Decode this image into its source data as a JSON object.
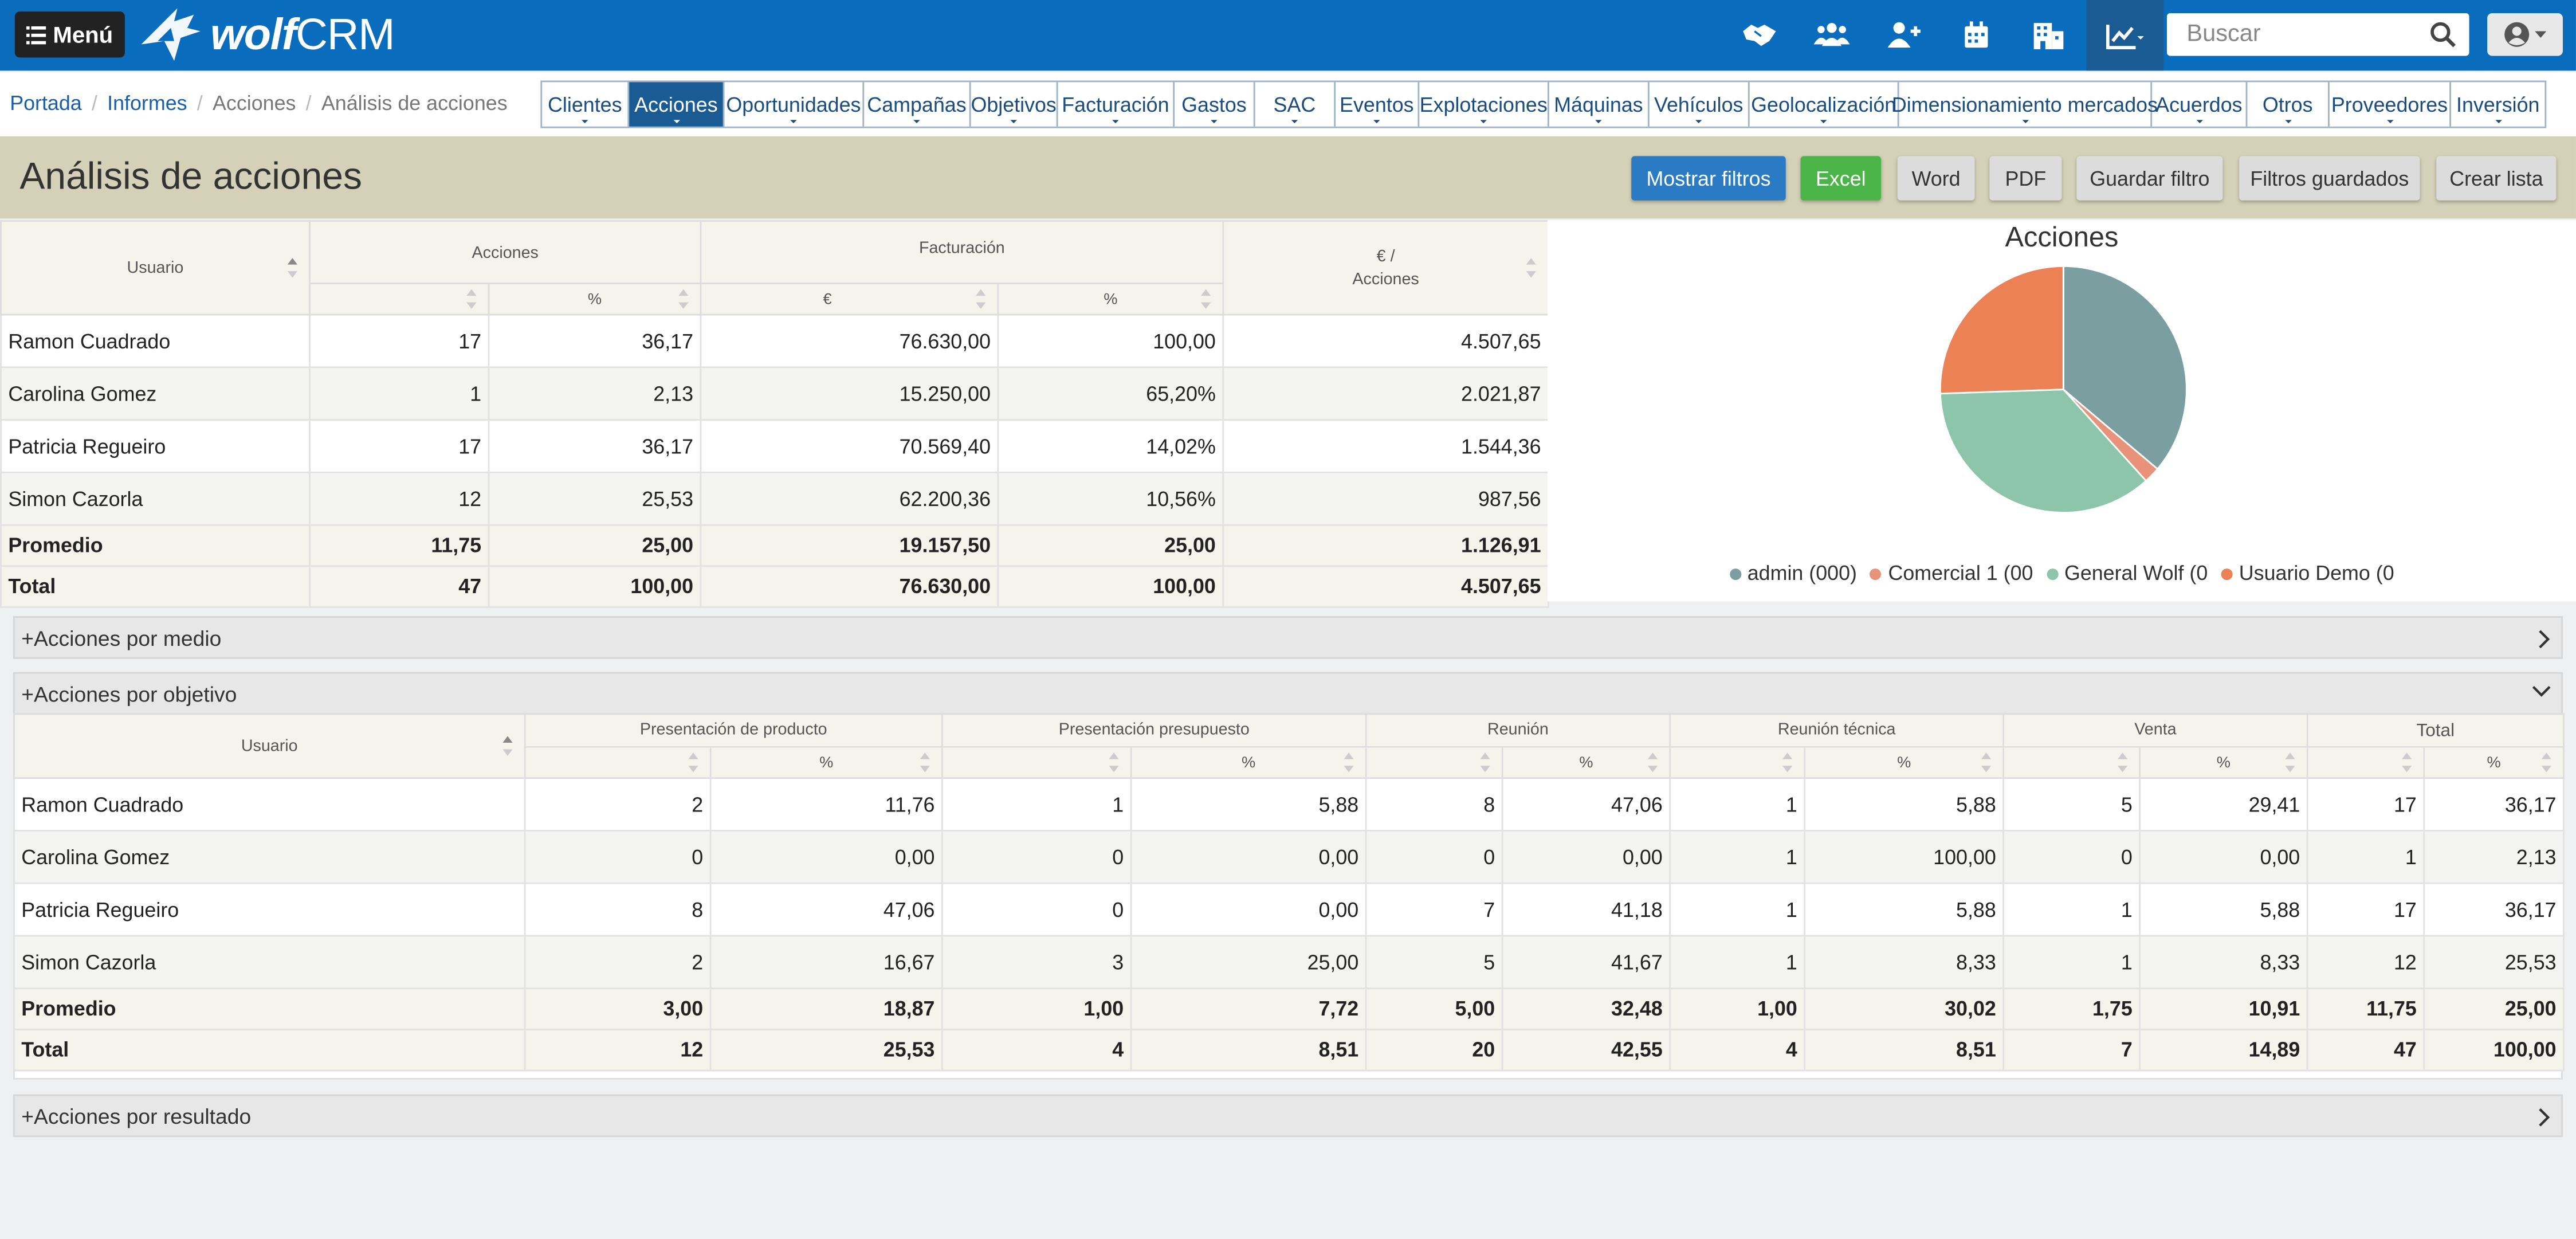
{
  "topbar": {
    "menu_label": "Menú",
    "logo_text_a": "wolf",
    "logo_text_b": "CRM",
    "search_placeholder": "Buscar",
    "icons": [
      "handshake-icon",
      "users-icon",
      "add-user-icon",
      "calendar-icon",
      "building-icon",
      "chart-line-icon"
    ]
  },
  "breadcrumb": [
    {
      "label": "Portada",
      "link": true
    },
    {
      "label": "Informes",
      "link": true
    },
    {
      "label": "Acciones",
      "link": false
    },
    {
      "label": "Análisis de acciones",
      "link": false
    }
  ],
  "tabs": [
    {
      "label": "Clientes",
      "w": 53
    },
    {
      "label": "Acciones",
      "w": 58,
      "active": true
    },
    {
      "label": "Oportunidades",
      "w": 85
    },
    {
      "label": "Campañas",
      "w": 65
    },
    {
      "label": "Objetivos",
      "w": 53
    },
    {
      "label": "Facturación",
      "w": 71
    },
    {
      "label": "Gastos",
      "w": 49
    },
    {
      "label": "SAC",
      "w": 49
    },
    {
      "label": "Eventos",
      "w": 51
    },
    {
      "label": "Explotaciones",
      "w": 79
    },
    {
      "label": "Máquinas",
      "w": 61
    },
    {
      "label": "Vehículos",
      "w": 61
    },
    {
      "label": "Geolocalización",
      "w": 91
    },
    {
      "label": "Dimensionamiento mercados",
      "w": 154
    },
    {
      "label": "Acuerdos",
      "w": 58
    },
    {
      "label": "Otros",
      "w": 50
    },
    {
      "label": "Proveedores",
      "w": 74
    },
    {
      "label": "Inversión",
      "w": 57
    }
  ],
  "page": {
    "title": "Análisis de acciones",
    "buttons": {
      "mostrar_filtros": "Mostrar filtros",
      "excel": "Excel",
      "word": "Word",
      "pdf": "PDF",
      "guardar_filtro": "Guardar filtro",
      "filtros_guardados": "Filtros guardados",
      "crear_lista": "Crear lista"
    }
  },
  "table1": {
    "headers": {
      "usuario": "Usuario",
      "acciones": "Acciones",
      "facturacion": "Facturación",
      "eur_per_line1": "€ /",
      "eur_per_line2": "Acciones",
      "pct": "%",
      "eur": "€"
    },
    "rows": [
      {
        "name": "Ramon Cuadrado",
        "acc": "17",
        "acc_pct": "36,17",
        "fact": "76.630,00",
        "fact_pct": "100,00",
        "per": "4.507,65"
      },
      {
        "name": "Carolina Gomez",
        "acc": "1",
        "acc_pct": "2,13",
        "fact": "15.250,00",
        "fact_pct": "65,20%",
        "per": "2.021,87"
      },
      {
        "name": "Patricia Regueiro",
        "acc": "17",
        "acc_pct": "36,17",
        "fact": "70.569,40",
        "fact_pct": "14,02%",
        "per": "1.544,36"
      },
      {
        "name": "Simon Cazorla",
        "acc": "12",
        "acc_pct": "25,53",
        "fact": "62.200,36",
        "fact_pct": "10,56%",
        "per": "987,56"
      }
    ],
    "footer": [
      {
        "name": "Promedio",
        "acc": "11,75",
        "acc_pct": "25,00",
        "fact": "19.157,50",
        "fact_pct": "25,00",
        "per": "1.126,91"
      },
      {
        "name": "Total",
        "acc": "47",
        "acc_pct": "100,00",
        "fact": "76.630,00",
        "fact_pct": "100,00",
        "per": "4.507,65"
      }
    ]
  },
  "chart_data": {
    "type": "pie",
    "title": "Acciones",
    "legend_placement": "bottom",
    "slices": [
      {
        "name": "admin (000)",
        "value": 36.17,
        "color": "#7b9ea1"
      },
      {
        "name": "Comercial 1 (00",
        "value": 2.13,
        "color": "#e8927a"
      },
      {
        "name": "General Wolf (0",
        "value": 36.17,
        "color": "#8cc5a9"
      },
      {
        "name": "Usuario Demo (0",
        "value": 25.53,
        "color": "#ec8156"
      }
    ]
  },
  "sections": {
    "por_medio": "+Acciones por medio",
    "por_objetivo": "+Acciones por objetivo",
    "por_resultado": "+Acciones por resultado"
  },
  "table2": {
    "headers": {
      "usuario": "Usuario",
      "groups": [
        "Presentación de producto",
        "Presentación presupuesto",
        "Reunión",
        "Reunión técnica",
        "Venta",
        "Total"
      ],
      "pct": "%"
    },
    "rows": [
      {
        "name": "Ramon Cuadrado",
        "v": [
          "2",
          "11,76",
          "1",
          "5,88",
          "8",
          "47,06",
          "1",
          "5,88",
          "5",
          "29,41",
          "17",
          "36,17"
        ]
      },
      {
        "name": "Carolina Gomez",
        "v": [
          "0",
          "0,00",
          "0",
          "0,00",
          "0",
          "0,00",
          "1",
          "100,00",
          "0",
          "0,00",
          "1",
          "2,13"
        ]
      },
      {
        "name": "Patricia Regueiro",
        "v": [
          "8",
          "47,06",
          "0",
          "0,00",
          "7",
          "41,18",
          "1",
          "5,88",
          "1",
          "5,88",
          "17",
          "36,17"
        ]
      },
      {
        "name": "Simon Cazorla",
        "v": [
          "2",
          "16,67",
          "3",
          "25,00",
          "5",
          "41,67",
          "1",
          "8,33",
          "1",
          "8,33",
          "12",
          "25,53"
        ]
      }
    ],
    "footer": [
      {
        "name": "Promedio",
        "v": [
          "3,00",
          "18,87",
          "1,00",
          "7,72",
          "5,00",
          "32,48",
          "1,00",
          "30,02",
          "1,75",
          "10,91",
          "11,75",
          "25,00"
        ]
      },
      {
        "name": "Total",
        "v": [
          "12",
          "25,53",
          "4",
          "8,51",
          "20",
          "42,55",
          "4",
          "8,51",
          "7",
          "14,89",
          "47",
          "100,00"
        ]
      }
    ]
  }
}
